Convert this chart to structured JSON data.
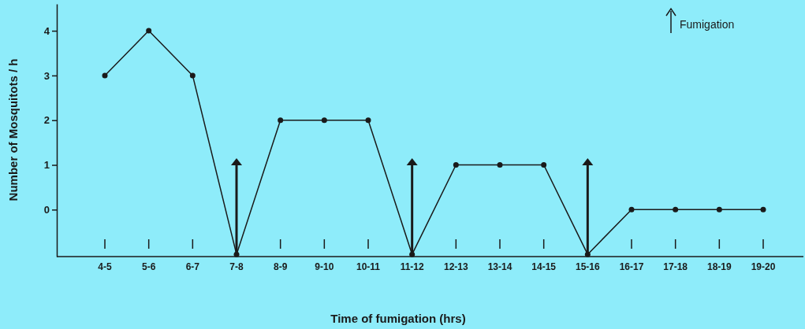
{
  "chart_data": {
    "type": "line",
    "xlabel": "Time of fumigation (hrs)",
    "ylabel": "Number of Mosquitots / h",
    "categories": [
      "4-5",
      "5-6",
      "6-7",
      "7-8",
      "8-9",
      "9-10",
      "10-11",
      "11-12",
      "12-13",
      "13-14",
      "14-15",
      "15-16",
      "16-17",
      "17-18",
      "18-19",
      "19-20"
    ],
    "series": [
      {
        "color": "#1a1a1a",
        "values": [
          3,
          4,
          3,
          -1,
          2,
          2,
          2,
          -1,
          1,
          1,
          1,
          -1,
          0,
          0,
          0,
          0
        ]
      }
    ],
    "ylim": [
      -1.05,
      4.6
    ],
    "yticks": [
      0,
      1,
      2,
      3,
      4
    ],
    "marker": "circle",
    "line_style": "solid",
    "grid": false,
    "ref_lines": [
      {
        "axis": "x",
        "value": "7-8"
      },
      {
        "axis": "x",
        "value": "11-12"
      },
      {
        "axis": "x",
        "value": "15-16"
      }
    ],
    "annotations": [
      "Fumigation"
    ]
  }
}
